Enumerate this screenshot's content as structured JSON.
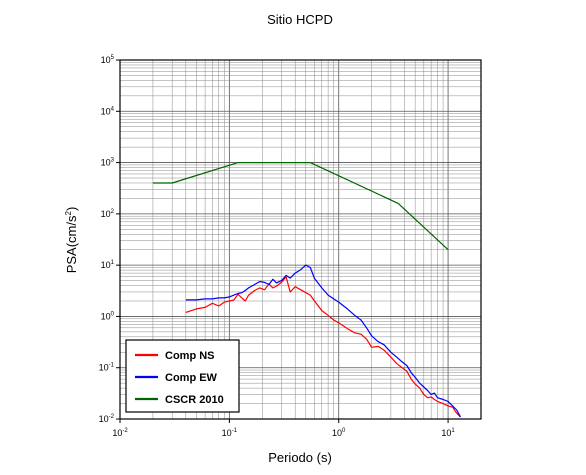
{
  "chart_data": {
    "type": "line",
    "title": "Sitio HCPD",
    "xlabel": "Periodo (s)",
    "ylabel_base": "PSA(cm/s",
    "ylabel_sup": "2",
    "ylabel_tail": ")",
    "x_scale": "log",
    "y_scale": "log",
    "xlim": [
      0.01,
      20
    ],
    "ylim": [
      0.01,
      100000
    ],
    "grid": true,
    "legend_position": "bottom-left",
    "x_ticks": [
      {
        "value": 0.01,
        "base": "10",
        "exp": "-2"
      },
      {
        "value": 0.1,
        "base": "10",
        "exp": "-1"
      },
      {
        "value": 1,
        "base": "10",
        "exp": "0"
      },
      {
        "value": 10,
        "base": "10",
        "exp": "1"
      }
    ],
    "y_ticks": [
      {
        "value": 0.01,
        "base": "10",
        "exp": "-2"
      },
      {
        "value": 0.1,
        "base": "10",
        "exp": "-1"
      },
      {
        "value": 1,
        "base": "10",
        "exp": "0"
      },
      {
        "value": 10,
        "base": "10",
        "exp": "1"
      },
      {
        "value": 100,
        "base": "10",
        "exp": "2"
      },
      {
        "value": 1000,
        "base": "10",
        "exp": "3"
      },
      {
        "value": 10000,
        "base": "10",
        "exp": "4"
      },
      {
        "value": 100000,
        "base": "10",
        "exp": "5"
      }
    ],
    "series": [
      {
        "name": "Comp NS",
        "color": "#ff0000",
        "x": [
          0.04,
          0.05,
          0.06,
          0.07,
          0.08,
          0.09,
          0.1,
          0.11,
          0.12,
          0.13,
          0.14,
          0.15,
          0.17,
          0.19,
          0.21,
          0.23,
          0.25,
          0.27,
          0.3,
          0.33,
          0.36,
          0.4,
          0.45,
          0.5,
          0.55,
          0.6,
          0.7,
          0.8,
          0.9,
          1.0,
          1.2,
          1.4,
          1.6,
          1.8,
          2.0,
          2.3,
          2.6,
          3.0,
          3.4,
          3.8,
          4.2,
          4.6,
          5.0,
          5.5,
          6.0,
          6.5,
          7.0,
          7.5,
          8.0,
          9.0,
          10.0,
          11.0,
          12.0,
          13.0
        ],
        "y": [
          1.2,
          1.4,
          1.5,
          1.8,
          1.6,
          1.9,
          2.0,
          2.1,
          2.7,
          2.3,
          2.0,
          2.6,
          3.2,
          3.6,
          3.3,
          4.3,
          3.6,
          3.9,
          4.6,
          5.9,
          3.0,
          3.8,
          3.3,
          2.9,
          2.6,
          2.0,
          1.3,
          1.05,
          0.85,
          0.75,
          0.58,
          0.48,
          0.45,
          0.36,
          0.25,
          0.26,
          0.22,
          0.16,
          0.12,
          0.1,
          0.085,
          0.06,
          0.048,
          0.04,
          0.03,
          0.026,
          0.027,
          0.024,
          0.022,
          0.02,
          0.018,
          0.017,
          0.013,
          0.011
        ]
      },
      {
        "name": "Comp EW",
        "color": "#0000ff",
        "x": [
          0.04,
          0.05,
          0.06,
          0.07,
          0.08,
          0.09,
          0.1,
          0.11,
          0.12,
          0.13,
          0.14,
          0.15,
          0.17,
          0.19,
          0.21,
          0.23,
          0.25,
          0.27,
          0.3,
          0.33,
          0.36,
          0.4,
          0.45,
          0.5,
          0.55,
          0.6,
          0.7,
          0.8,
          0.9,
          1.0,
          1.2,
          1.4,
          1.6,
          1.8,
          2.0,
          2.3,
          2.6,
          3.0,
          3.4,
          3.8,
          4.2,
          4.6,
          5.0,
          5.5,
          6.0,
          6.5,
          7.0,
          7.5,
          8.0,
          9.0,
          10.0,
          11.0,
          12.0,
          13.0
        ],
        "y": [
          2.1,
          2.1,
          2.2,
          2.2,
          2.3,
          2.3,
          2.4,
          2.6,
          2.8,
          2.9,
          3.2,
          3.6,
          4.2,
          4.8,
          4.6,
          4.2,
          5.3,
          4.5,
          5.0,
          6.3,
          5.6,
          7.0,
          8.2,
          10.0,
          9.0,
          5.5,
          3.6,
          2.6,
          2.2,
          1.9,
          1.4,
          1.05,
          0.85,
          0.6,
          0.42,
          0.32,
          0.28,
          0.2,
          0.16,
          0.13,
          0.11,
          0.08,
          0.065,
          0.05,
          0.042,
          0.036,
          0.03,
          0.032,
          0.026,
          0.024,
          0.022,
          0.018,
          0.015,
          0.011
        ]
      },
      {
        "name": "CSCR 2010",
        "color": "#006400",
        "x": [
          0.02,
          0.03,
          0.12,
          0.55,
          3.5,
          10
        ],
        "y": [
          400,
          400,
          1000,
          1000,
          160,
          20
        ]
      }
    ]
  }
}
